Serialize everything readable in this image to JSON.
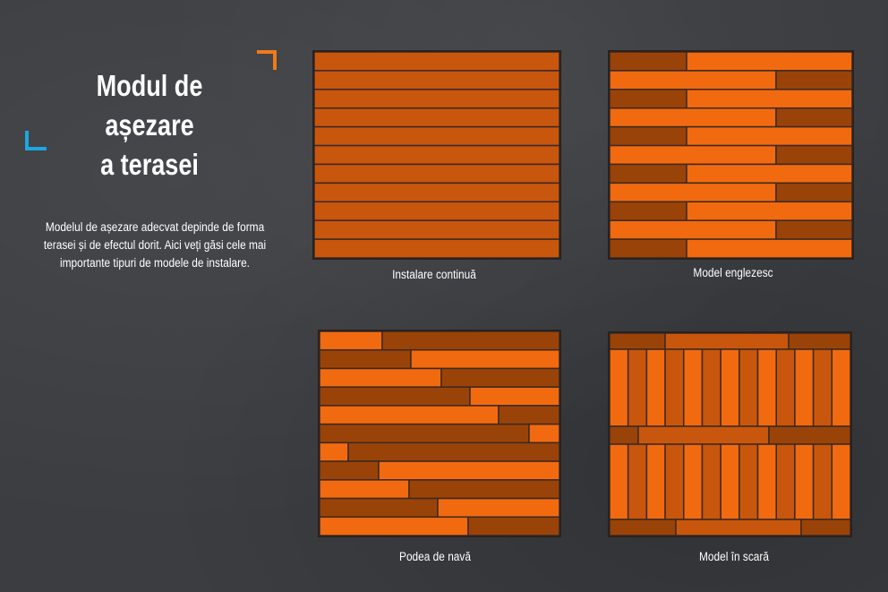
{
  "header": {
    "title_line1": "Modul de așezare",
    "title_line2": "a terasei"
  },
  "intro": {
    "description": "Modelul de așezare adecvat depinde de forma terasei și de efectul dorit. Aici veți găsi cele mai importante tipuri de modele de instalare."
  },
  "patterns": [
    {
      "id": "continuous",
      "caption": "Instalare continuă"
    },
    {
      "id": "english",
      "caption": "Model englezesc"
    },
    {
      "id": "ship",
      "caption": "Podea de navă"
    },
    {
      "id": "stair",
      "caption": "Model în scară"
    }
  ],
  "colors": {
    "plank_main": "#c9560d",
    "plank_bright": "#f26a10",
    "plank_dark": "#9a4309",
    "seam": "#3a2a20",
    "accent_orange": "#f07a1a",
    "accent_blue": "#1ea6e0"
  }
}
